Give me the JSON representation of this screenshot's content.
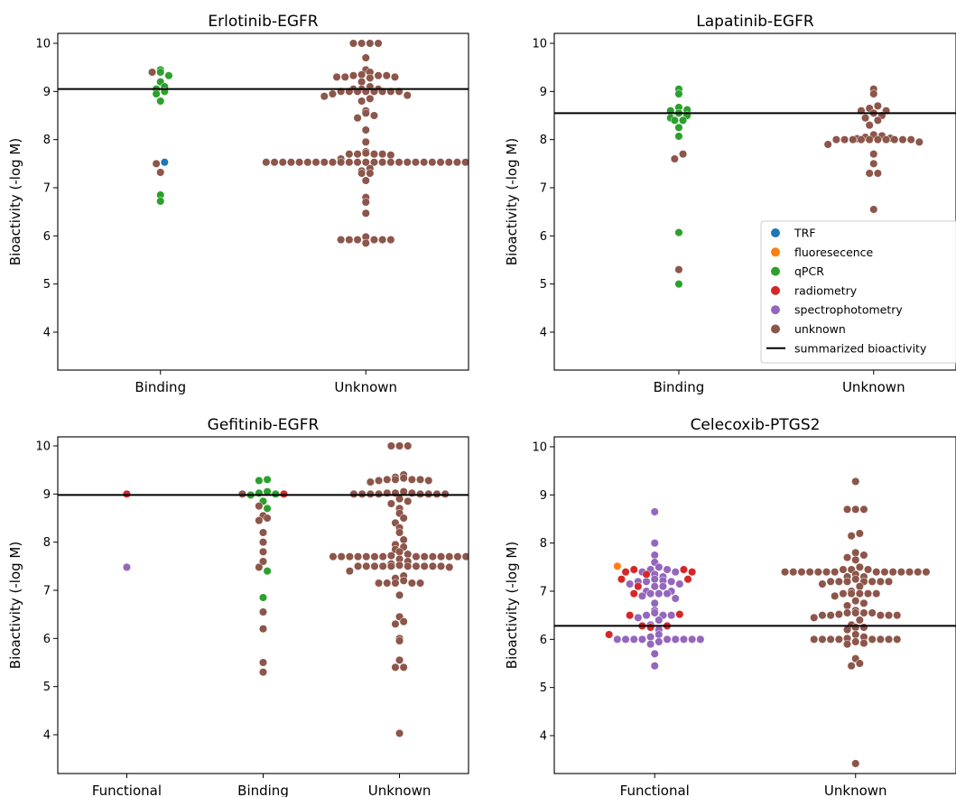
{
  "colors": {
    "TRF": "#1f77b4",
    "fluoresecence": "#ff7f0e",
    "qPCR": "#2ca02c",
    "radiometry": "#d62728",
    "spectrophotometry": "#9467bd",
    "unknown": "#8c564b",
    "summary": "#000000"
  },
  "legend": {
    "placement": "lower-right of top-right panel",
    "items": [
      {
        "key": "TRF",
        "label": "TRF",
        "kind": "dot"
      },
      {
        "key": "fluoresecence",
        "label": "fluoresecence",
        "kind": "dot"
      },
      {
        "key": "qPCR",
        "label": "qPCR",
        "kind": "dot"
      },
      {
        "key": "radiometry",
        "label": "radiometry",
        "kind": "dot"
      },
      {
        "key": "spectrophotometry",
        "label": "spectrophotometry",
        "kind": "dot"
      },
      {
        "key": "unknown",
        "label": "unknown",
        "kind": "dot"
      },
      {
        "key": "summary",
        "label": "summarized bioactivity",
        "kind": "line"
      }
    ]
  },
  "chart_data": [
    {
      "type": "scatter",
      "title": "Erlotinib-EGFR",
      "ylabel": "Bioactivity (-log M)",
      "ylim": [
        3.2,
        10.2
      ],
      "yticks": [
        4,
        5,
        6,
        7,
        8,
        9,
        10
      ],
      "categories": [
        "Binding",
        "Unknown"
      ],
      "summary": 9.05,
      "groups": [
        {
          "category": "Binding",
          "points": [
            {
              "m": "qPCR",
              "v": [
                9.45,
                9.4,
                9.33,
                9.2,
                9.1,
                9.05,
                9.0,
                8.95,
                8.8,
                6.85,
                6.72
              ]
            },
            {
              "m": "TRF",
              "v": [
                7.53
              ]
            },
            {
              "m": "unknown",
              "v": [
                9.4,
                7.5,
                7.32
              ]
            }
          ]
        },
        {
          "category": "Unknown",
          "points": [
            {
              "m": "unknown",
              "v": [
                10.0,
                10.0,
                10.0,
                10.0,
                9.7,
                9.45,
                9.4,
                9.35,
                9.33,
                9.33,
                9.33,
                9.3,
                9.3,
                9.3,
                9.28,
                9.2,
                9.1,
                9.05,
                9.05,
                9.05,
                9.0,
                9.0,
                9.0,
                9.0,
                9.0,
                9.0,
                9.0,
                9.0,
                8.95,
                8.92,
                8.9,
                8.85,
                8.8,
                8.6,
                8.55,
                8.5,
                8.45,
                8.2,
                7.95,
                7.75,
                7.72,
                7.7,
                7.7,
                7.7,
                7.7,
                7.68,
                7.6,
                7.53,
                7.53,
                7.53,
                7.53,
                7.53,
                7.53,
                7.53,
                7.53,
                7.53,
                7.53,
                7.53,
                7.53,
                7.53,
                7.53,
                7.53,
                7.53,
                7.53,
                7.53,
                7.53,
                7.53,
                7.53,
                7.53,
                7.53,
                7.53,
                7.53,
                7.4,
                7.35,
                7.3,
                7.3,
                7.15,
                6.8,
                6.7,
                6.47,
                5.98,
                5.92,
                5.92,
                5.92,
                5.92,
                5.92,
                5.92,
                5.85
              ]
            }
          ]
        }
      ]
    },
    {
      "type": "scatter",
      "title": "Lapatinib-EGFR",
      "ylabel": "Bioactivity (-log M)",
      "ylim": [
        3.2,
        10.2
      ],
      "yticks": [
        4,
        5,
        6,
        7,
        8,
        9,
        10
      ],
      "categories": [
        "Binding",
        "Unknown"
      ],
      "summary": 8.55,
      "groups": [
        {
          "category": "Binding",
          "points": [
            {
              "m": "qPCR",
              "v": [
                9.05,
                8.95,
                8.67,
                8.62,
                8.6,
                8.55,
                8.5,
                8.45,
                8.4,
                8.4,
                8.25,
                8.07,
                6.07,
                5.0
              ]
            },
            {
              "m": "unknown",
              "v": [
                7.7,
                7.6,
                5.3
              ]
            }
          ]
        },
        {
          "category": "Unknown",
          "points": [
            {
              "m": "unknown",
              "v": [
                9.05,
                8.95,
                8.7,
                8.65,
                8.6,
                8.6,
                8.55,
                8.5,
                8.45,
                8.4,
                8.3,
                8.1,
                8.08,
                8.05,
                8.03,
                8.02,
                8.0,
                8.0,
                8.0,
                8.0,
                8.0,
                8.0,
                8.0,
                8.0,
                8.0,
                8.0,
                7.95,
                7.9,
                7.7,
                7.5,
                7.3,
                7.3,
                6.55
              ]
            }
          ]
        }
      ]
    },
    {
      "type": "scatter",
      "title": "Gefitinib-EGFR",
      "ylabel": "Bioactivity (-log M)",
      "ylim": [
        3.2,
        10.2
      ],
      "yticks": [
        4,
        5,
        6,
        7,
        8,
        9,
        10
      ],
      "categories": [
        "Functional",
        "Binding",
        "Unknown"
      ],
      "summary": 8.98,
      "groups": [
        {
          "category": "Functional",
          "points": [
            {
              "m": "radiometry",
              "v": [
                9.0
              ]
            },
            {
              "m": "spectrophotometry",
              "v": [
                7.48
              ]
            }
          ]
        },
        {
          "category": "Binding",
          "points": [
            {
              "m": "qPCR",
              "v": [
                9.3,
                9.28,
                9.05,
                9.02,
                9.0,
                8.98,
                8.85,
                8.7,
                7.4,
                6.85
              ]
            },
            {
              "m": "radiometry",
              "v": [
                9.0
              ]
            },
            {
              "m": "unknown",
              "v": [
                9.0,
                8.75,
                8.55,
                8.5,
                8.45,
                8.2,
                8.0,
                7.8,
                7.6,
                7.48,
                6.55,
                6.2,
                5.5,
                5.3
              ]
            }
          ]
        },
        {
          "category": "Unknown",
          "points": [
            {
              "m": "unknown",
              "v": [
                10.0,
                10.0,
                10.0,
                9.4,
                9.35,
                9.33,
                9.3,
                9.3,
                9.3,
                9.3,
                9.28,
                9.28,
                9.25,
                9.05,
                9.02,
                9.02,
                9.02,
                9.0,
                9.0,
                9.0,
                9.0,
                9.0,
                9.0,
                9.0,
                9.0,
                8.9,
                8.85,
                8.8,
                8.7,
                8.6,
                8.5,
                8.4,
                8.3,
                8.2,
                8.05,
                7.95,
                7.9,
                7.85,
                7.8,
                7.75,
                7.72,
                7.7,
                7.7,
                7.7,
                7.7,
                7.7,
                7.7,
                7.7,
                7.7,
                7.7,
                7.7,
                7.7,
                7.7,
                7.7,
                7.7,
                7.65,
                7.6,
                7.55,
                7.52,
                7.5,
                7.5,
                7.5,
                7.5,
                7.5,
                7.5,
                7.5,
                7.5,
                7.5,
                7.5,
                7.48,
                7.4,
                7.3,
                7.25,
                7.2,
                7.15,
                7.15,
                7.15,
                7.15,
                7.15,
                6.9,
                6.45,
                6.35,
                6.3,
                6.0,
                5.95,
                5.55,
                5.4,
                5.4,
                4.03
              ]
            }
          ]
        }
      ]
    },
    {
      "type": "scatter",
      "title": "Celecoxib-PTGS2",
      "ylabel": "Bioactivity (-log M)",
      "ylim": [
        3.3,
        10.2
      ],
      "yticks": [
        4,
        5,
        6,
        7,
        8,
        9,
        10
      ],
      "categories": [
        "Functional",
        "Unknown"
      ],
      "summary": 6.28,
      "groups": [
        {
          "category": "Functional",
          "points": [
            {
              "m": "spectrophotometry",
              "v": [
                8.65,
                8.0,
                7.75,
                7.6,
                7.5,
                7.45,
                7.45,
                7.4,
                7.4,
                7.35,
                7.3,
                7.25,
                7.22,
                7.2,
                7.2,
                7.2,
                7.15,
                7.15,
                7.1,
                7.1,
                7.0,
                7.0,
                6.95,
                6.95,
                6.95,
                6.9,
                6.85,
                6.75,
                6.6,
                6.55,
                6.5,
                6.5,
                6.5,
                6.45,
                6.4,
                6.3,
                6.2,
                6.1,
                6.05,
                6.0,
                6.0,
                6.0,
                6.0,
                6.0,
                6.0,
                6.0,
                6.0,
                6.0,
                5.95,
                5.9,
                5.7,
                5.45
              ]
            },
            {
              "m": "radiometry",
              "v": [
                7.45,
                7.45,
                7.4,
                7.4,
                7.35,
                7.25,
                7.25,
                7.1,
                6.95,
                6.52,
                6.5,
                6.28,
                6.28,
                6.25,
                6.1
              ]
            },
            {
              "m": "fluoresecence",
              "v": [
                7.52
              ]
            }
          ]
        },
        {
          "category": "Unknown",
          "points": [
            {
              "m": "unknown",
              "v": [
                9.28,
                8.7,
                8.7,
                8.7,
                8.2,
                8.15,
                7.8,
                7.75,
                7.7,
                7.65,
                7.5,
                7.45,
                7.45,
                7.45,
                7.4,
                7.4,
                7.4,
                7.4,
                7.4,
                7.4,
                7.4,
                7.4,
                7.4,
                7.4,
                7.4,
                7.4,
                7.4,
                7.4,
                7.35,
                7.3,
                7.3,
                7.25,
                7.2,
                7.2,
                7.2,
                7.2,
                7.2,
                7.2,
                7.2,
                7.15,
                7.1,
                7.0,
                6.95,
                6.95,
                6.95,
                6.95,
                6.95,
                6.9,
                6.8,
                6.75,
                6.7,
                6.6,
                6.55,
                6.55,
                6.55,
                6.55,
                6.52,
                6.5,
                6.5,
                6.5,
                6.5,
                6.5,
                6.45,
                6.4,
                6.3,
                6.25,
                6.25,
                6.2,
                6.1,
                6.05,
                6.02,
                6.0,
                6.0,
                6.0,
                6.0,
                6.0,
                6.0,
                6.0,
                6.0,
                5.95,
                5.92,
                5.9,
                5.6,
                5.5,
                5.45,
                3.42
              ]
            }
          ]
        }
      ]
    }
  ]
}
